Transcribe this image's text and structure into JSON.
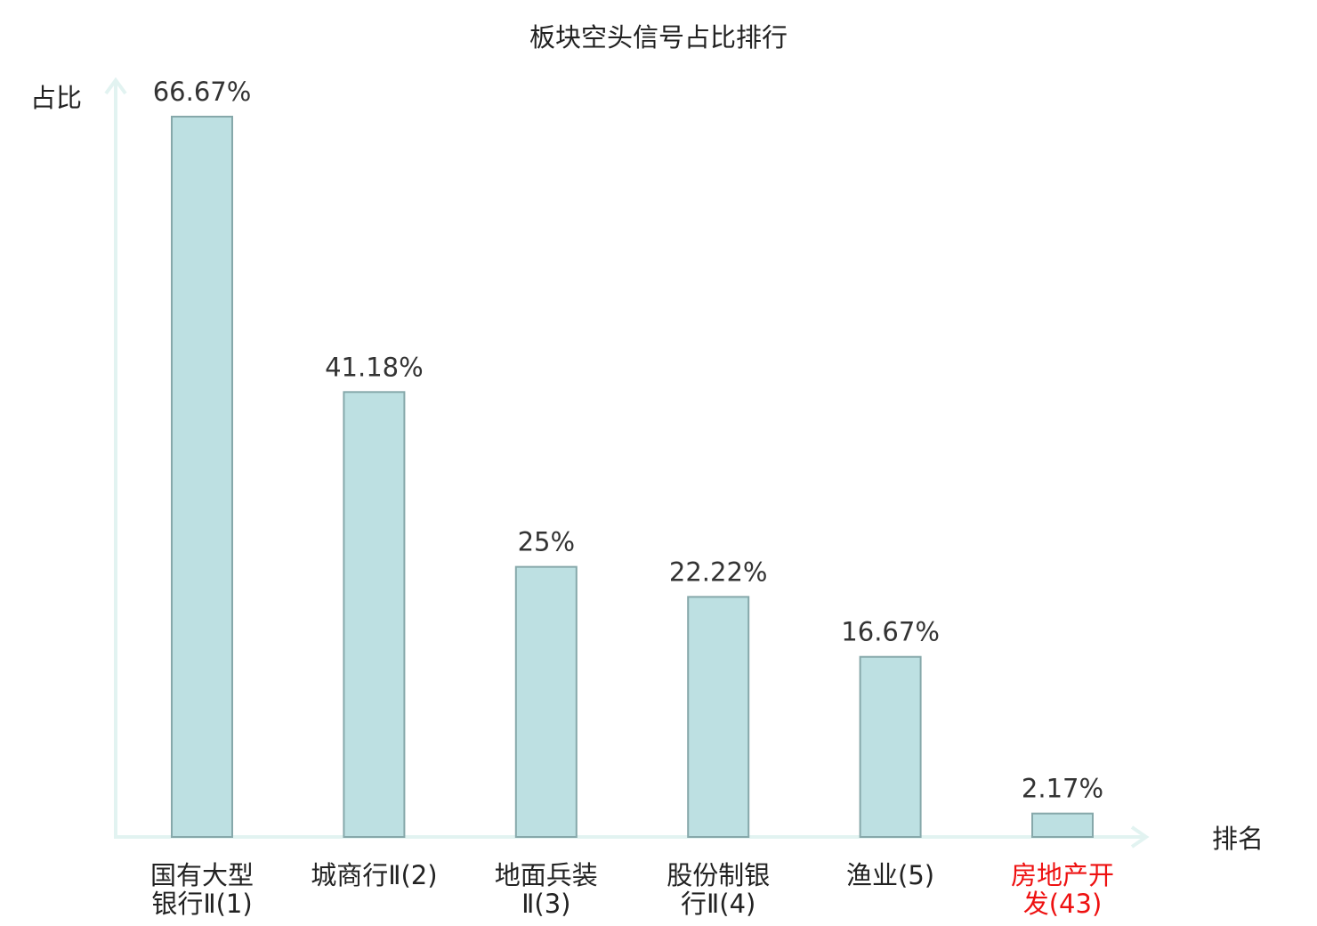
{
  "chart_data": {
    "type": "bar",
    "title": "板块空头信号占比排行",
    "ylabel": "占比",
    "xlabel": "排名",
    "ylim": [
      0,
      66.67
    ],
    "grid": false,
    "categories": [
      [
        "国有大型",
        "银行Ⅱ(1)"
      ],
      [
        "城商行Ⅱ(2)"
      ],
      [
        "地面兵装",
        "Ⅱ(3)"
      ],
      [
        "股份制银",
        "行Ⅱ(4)"
      ],
      [
        "渔业(5)"
      ],
      [
        "房地产开",
        "发(43)"
      ]
    ],
    "values": [
      66.67,
      41.18,
      25,
      22.22,
      16.67,
      2.17
    ],
    "value_labels": [
      "66.67%",
      "41.18%",
      "25%",
      "22.22%",
      "16.67%",
      "2.17%"
    ],
    "highlight_index": 5,
    "colors": {
      "bar_fill": "#bde0e2",
      "bar_stroke": "#86a8aa",
      "axis": "#e2f3f1",
      "highlight_label": "#e11111"
    }
  }
}
